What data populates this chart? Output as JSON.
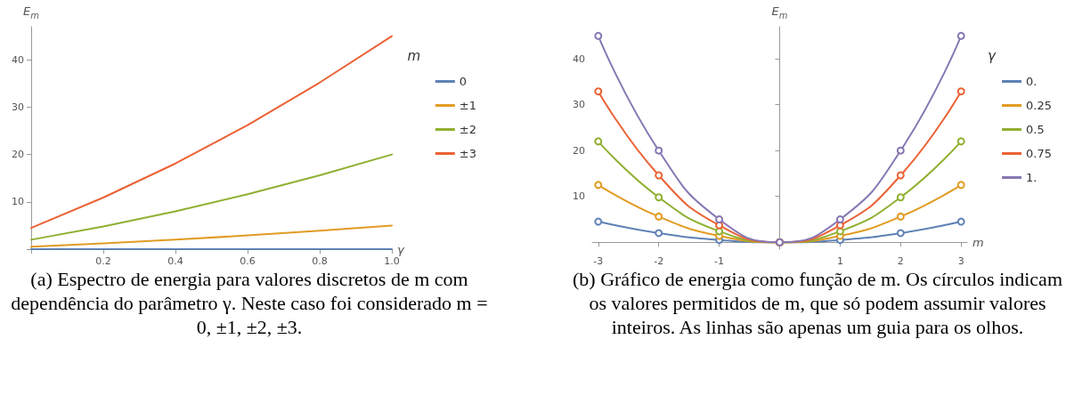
{
  "chart_data": [
    {
      "type": "line",
      "xlabel": "γ",
      "ylabel": "E$_{m}$",
      "legend_title": "m",
      "legend": "right",
      "grid": false,
      "marker": "none",
      "x": [
        0,
        0.2,
        0.4,
        0.6,
        0.8,
        1
      ],
      "xlim": [
        0,
        1
      ],
      "xticks": [
        {
          "value": 0,
          "label": null
        },
        0.2,
        0.4,
        0.6,
        0.8,
        {
          "value": 1,
          "label": "1.0"
        }
      ],
      "ylim": [
        0,
        47
      ],
      "yticks": [
        {
          "value": 0,
          "label": null
        },
        10,
        20,
        30,
        40
      ],
      "series": [
        {
          "name": "0",
          "color": "#5e81b5",
          "values": [
            0,
            0,
            0,
            0,
            0,
            0
          ]
        },
        {
          "name": "±1",
          "color": "#e19c24",
          "values": [
            0.5,
            1.2,
            2.0,
            2.9,
            3.9,
            5
          ]
        },
        {
          "name": "±2",
          "color": "#8fb032",
          "values": [
            2,
            4.8,
            8.0,
            11.6,
            15.6,
            20
          ]
        },
        {
          "name": "±3",
          "color": "#eb6235",
          "values": [
            4.5,
            10.9,
            18.1,
            26.2,
            35.2,
            45
          ]
        }
      ],
      "annotations": [
        "(a) Espectro de energia para valores discretos de m com dependência do parâmetro γ. Neste caso foi considerado m = 0, ±1, ±2, ±3."
      ]
    },
    {
      "type": "line",
      "xlabel": "m",
      "ylabel": "E$_{m}$",
      "legend_title": "γ",
      "legend": "right",
      "grid": false,
      "marker": "circle",
      "x": [
        -3,
        -2,
        -1,
        0,
        1,
        2,
        3
      ],
      "xlim": [
        -3.1,
        3.1
      ],
      "xticks": [
        -3,
        -2,
        -1,
        1,
        2,
        3
      ],
      "ylim": [
        -1.5,
        47
      ],
      "yticks": [
        10,
        20,
        30,
        40
      ],
      "series": [
        {
          "name": "0.",
          "color": "#5e81b5",
          "values": [
            4.5,
            2,
            0.5,
            0,
            0.5,
            2,
            4.5
          ]
        },
        {
          "name": "0.25",
          "color": "#e19c24",
          "values": [
            12.5,
            5.6,
            1.4,
            0,
            1.4,
            5.6,
            12.5
          ]
        },
        {
          "name": "0.5",
          "color": "#8fb032",
          "values": [
            22,
            9.8,
            2.4,
            0,
            2.4,
            9.8,
            22
          ]
        },
        {
          "name": "0.75",
          "color": "#eb6235",
          "values": [
            32.9,
            14.6,
            3.7,
            0,
            3.7,
            14.6,
            32.9
          ]
        },
        {
          "name": "1.",
          "color": "#8778b3",
          "values": [
            45,
            20,
            5,
            0,
            5,
            20,
            45
          ]
        }
      ],
      "annotations": [
        "(b) Gráfico de energia como função de m. Os círculos indicam os valores permitidos de m, que só podem assumir valores inteiros. As linhas são apenas um guia para os olhos."
      ]
    }
  ]
}
